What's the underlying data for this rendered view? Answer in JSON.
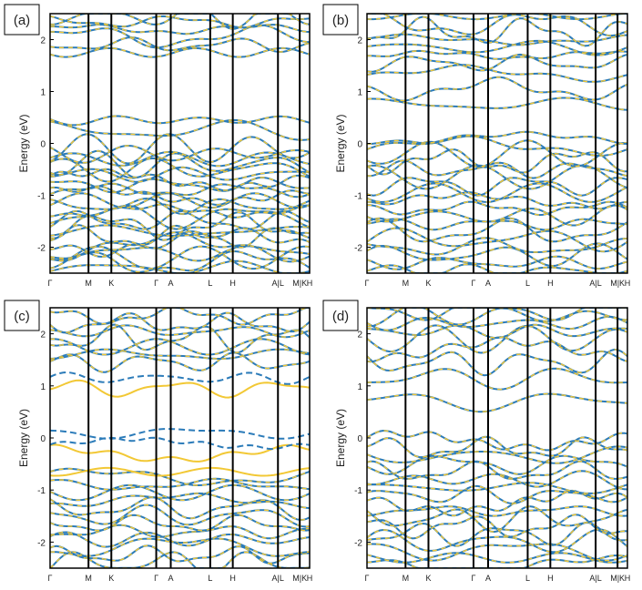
{
  "chart_data": [
    {
      "type": "line",
      "panel_label": "(a)",
      "ylabel": "Energy (eV)",
      "ylim": [
        -2.5,
        2.5
      ],
      "y_ticks": [
        -2,
        -1,
        0,
        1,
        2
      ],
      "k_labels": [
        "Γ",
        "M",
        "K",
        "Γ",
        "A",
        "L",
        "H",
        "A|L",
        "M|K",
        "H"
      ],
      "spin_split": false,
      "grid": false,
      "bands": [
        -2.4,
        -2.3,
        -2.2,
        -2.1,
        -2.0,
        -1.9,
        -1.8,
        -1.7,
        -1.6,
        -1.5,
        -1.4,
        -1.3,
        -1.2,
        -1.1,
        -1.0,
        -0.9,
        -0.8,
        -0.7,
        -0.6,
        -0.5,
        -0.4,
        -0.3,
        -0.2,
        -0.1,
        0.25,
        0.45,
        1.75,
        1.9,
        2.05,
        2.2,
        2.35,
        2.45
      ]
    },
    {
      "type": "line",
      "panel_label": "(b)",
      "ylabel": "Energy (eV)",
      "ylim": [
        -2.5,
        2.5
      ],
      "y_ticks": [
        -2,
        -1,
        0,
        1,
        2
      ],
      "k_labels": [
        "Γ",
        "M",
        "K",
        "Γ",
        "A",
        "L",
        "H",
        "A|L",
        "M|K",
        "H"
      ],
      "spin_split": false,
      "grid": false,
      "bands": [
        -2.45,
        -2.3,
        -2.15,
        -2.0,
        -1.85,
        -1.7,
        -1.55,
        -1.4,
        -1.25,
        -1.1,
        -0.95,
        -0.8,
        -0.65,
        -0.5,
        -0.35,
        -0.2,
        -0.05,
        0.1,
        0.75,
        1.05,
        1.35,
        1.55,
        1.7,
        1.85,
        2.0,
        2.15,
        2.3,
        2.45
      ]
    },
    {
      "type": "line",
      "panel_label": "(c)",
      "ylabel": "Energy (eV)",
      "ylim": [
        -2.5,
        2.5
      ],
      "y_ticks": [
        -2,
        -1,
        0,
        1,
        2
      ],
      "k_labels": [
        "Γ",
        "M",
        "K",
        "Γ",
        "A",
        "L",
        "H",
        "A|L",
        "M|K",
        "H"
      ],
      "spin_split": true,
      "grid": false,
      "bands": [
        -2.4,
        -2.25,
        -2.1,
        -1.95,
        -1.8,
        -1.65,
        -1.5,
        -1.35,
        -1.2,
        -1.05,
        -0.9,
        -0.75,
        1.45,
        1.6,
        1.75,
        1.9,
        2.05,
        2.2,
        2.35
      ],
      "spin_up_bands": [
        -0.3,
        0.95,
        -0.65
      ],
      "spin_down_bands": [
        0.1,
        -0.1,
        1.15
      ]
    },
    {
      "type": "line",
      "panel_label": "(d)",
      "ylabel": "Energy (eV)",
      "ylim": [
        -2.5,
        2.5
      ],
      "y_ticks": [
        -2,
        -1,
        0,
        1,
        2
      ],
      "k_labels": [
        "Γ",
        "M",
        "K",
        "Γ",
        "A",
        "L",
        "H",
        "A|L",
        "M|K",
        "H"
      ],
      "spin_split": false,
      "grid": false,
      "bands": [
        -2.45,
        -2.3,
        -2.15,
        -2.0,
        -1.85,
        -1.7,
        -1.55,
        -1.4,
        -1.25,
        -1.1,
        -0.95,
        -0.8,
        -0.65,
        -0.5,
        -0.35,
        -0.2,
        -0.05,
        0.7,
        1.15,
        1.45,
        1.7,
        1.9,
        2.05,
        2.2,
        2.35,
        2.45
      ]
    }
  ],
  "colors": {
    "spin_up": "#f2c835",
    "spin_down": "#2b7bb9",
    "overlap_dash": "#6a9a6a",
    "axis": "#000000"
  }
}
